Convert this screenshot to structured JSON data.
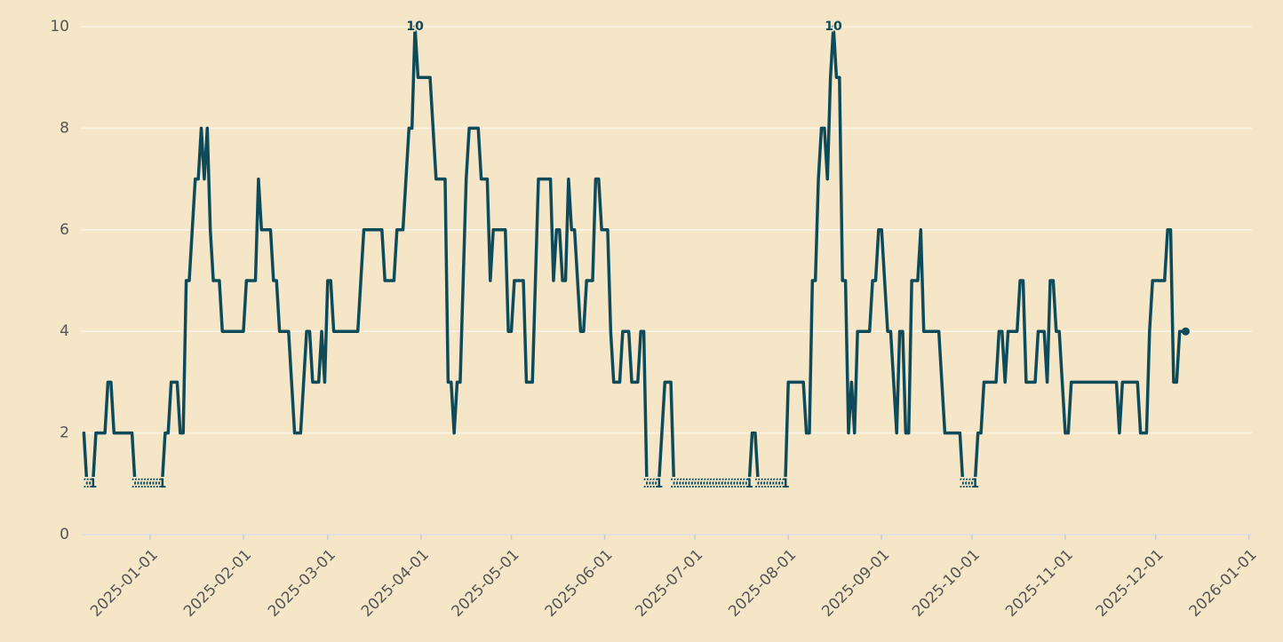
{
  "chart_data": {
    "type": "line",
    "x": [
      "2024-12-10",
      "2024-12-11",
      "2024-12-12",
      "2024-12-13",
      "2024-12-14",
      "2024-12-15",
      "2024-12-16",
      "2024-12-17",
      "2024-12-18",
      "2024-12-19",
      "2024-12-20",
      "2024-12-21",
      "2024-12-22",
      "2024-12-23",
      "2024-12-24",
      "2024-12-25",
      "2024-12-26",
      "2024-12-27",
      "2024-12-28",
      "2024-12-29",
      "2024-12-30",
      "2024-12-31",
      "2025-01-01",
      "2025-01-02",
      "2025-01-03",
      "2025-01-04",
      "2025-01-05",
      "2025-01-06",
      "2025-01-07",
      "2025-01-08",
      "2025-01-09",
      "2025-01-10",
      "2025-01-11",
      "2025-01-12",
      "2025-01-13",
      "2025-01-14",
      "2025-01-15",
      "2025-01-16",
      "2025-01-17",
      "2025-01-18",
      "2025-01-19",
      "2025-01-20",
      "2025-01-21",
      "2025-01-22",
      "2025-01-23",
      "2025-01-24",
      "2025-01-25",
      "2025-01-26",
      "2025-01-27",
      "2025-01-28",
      "2025-01-29",
      "2025-01-30",
      "2025-01-31",
      "2025-02-01",
      "2025-02-02",
      "2025-02-03",
      "2025-02-04",
      "2025-02-05",
      "2025-02-06",
      "2025-02-07",
      "2025-02-08",
      "2025-02-09",
      "2025-02-10",
      "2025-02-11",
      "2025-02-12",
      "2025-02-13",
      "2025-02-14",
      "2025-02-15",
      "2025-02-16",
      "2025-02-17",
      "2025-02-18",
      "2025-02-19",
      "2025-02-20",
      "2025-02-21",
      "2025-02-22",
      "2025-02-23",
      "2025-02-24",
      "2025-02-25",
      "2025-02-26",
      "2025-02-27",
      "2025-02-28",
      "2025-03-01",
      "2025-03-02",
      "2025-03-03",
      "2025-03-04",
      "2025-03-05",
      "2025-03-06",
      "2025-03-07",
      "2025-03-08",
      "2025-03-09",
      "2025-03-10",
      "2025-03-11",
      "2025-03-12",
      "2025-03-13",
      "2025-03-14",
      "2025-03-15",
      "2025-03-16",
      "2025-03-17",
      "2025-03-18",
      "2025-03-19",
      "2025-03-20",
      "2025-03-21",
      "2025-03-22",
      "2025-03-23",
      "2025-03-24",
      "2025-03-25",
      "2025-03-26",
      "2025-03-27",
      "2025-03-28",
      "2025-03-29",
      "2025-03-30",
      "2025-03-31",
      "2025-04-01",
      "2025-04-02",
      "2025-04-03",
      "2025-04-04",
      "2025-04-05",
      "2025-04-06",
      "2025-04-07",
      "2025-04-08",
      "2025-04-09",
      "2025-04-10",
      "2025-04-11",
      "2025-04-12",
      "2025-04-13",
      "2025-04-14",
      "2025-04-15",
      "2025-04-16",
      "2025-04-17",
      "2025-04-18",
      "2025-04-19",
      "2025-04-20",
      "2025-04-21",
      "2025-04-22",
      "2025-04-23",
      "2025-04-24",
      "2025-04-25",
      "2025-04-26",
      "2025-04-27",
      "2025-04-28",
      "2025-04-29",
      "2025-04-30",
      "2025-05-01",
      "2025-05-02",
      "2025-05-03",
      "2025-05-04",
      "2025-05-05",
      "2025-05-06",
      "2025-05-07",
      "2025-05-08",
      "2025-05-09",
      "2025-05-10",
      "2025-05-11",
      "2025-05-12",
      "2025-05-13",
      "2025-05-14",
      "2025-05-15",
      "2025-05-16",
      "2025-05-17",
      "2025-05-18",
      "2025-05-19",
      "2025-05-20",
      "2025-05-21",
      "2025-05-22",
      "2025-05-23",
      "2025-05-24",
      "2025-05-25",
      "2025-05-26",
      "2025-05-27",
      "2025-05-28",
      "2025-05-29",
      "2025-05-30",
      "2025-05-31",
      "2025-06-01",
      "2025-06-02",
      "2025-06-03",
      "2025-06-04",
      "2025-06-05",
      "2025-06-06",
      "2025-06-07",
      "2025-06-08",
      "2025-06-09",
      "2025-06-10",
      "2025-06-11",
      "2025-06-12",
      "2025-06-13",
      "2025-06-14",
      "2025-06-15",
      "2025-06-16",
      "2025-06-17",
      "2025-06-18",
      "2025-06-19",
      "2025-06-20",
      "2025-06-21",
      "2025-06-22",
      "2025-06-23",
      "2025-06-24",
      "2025-06-25",
      "2025-06-26",
      "2025-06-27",
      "2025-06-28",
      "2025-06-29",
      "2025-06-30",
      "2025-07-01",
      "2025-07-02",
      "2025-07-03",
      "2025-07-04",
      "2025-07-05",
      "2025-07-06",
      "2025-07-07",
      "2025-07-08",
      "2025-07-09",
      "2025-07-10",
      "2025-07-11",
      "2025-07-12",
      "2025-07-13",
      "2025-07-14",
      "2025-07-15",
      "2025-07-16",
      "2025-07-17",
      "2025-07-18",
      "2025-07-19",
      "2025-07-20",
      "2025-07-21",
      "2025-07-22",
      "2025-07-23",
      "2025-07-24",
      "2025-07-25",
      "2025-07-26",
      "2025-07-27",
      "2025-07-28",
      "2025-07-29",
      "2025-07-30",
      "2025-07-31",
      "2025-08-01",
      "2025-08-02",
      "2025-08-03",
      "2025-08-04",
      "2025-08-05",
      "2025-08-06",
      "2025-08-07",
      "2025-08-08",
      "2025-08-09",
      "2025-08-10",
      "2025-08-11",
      "2025-08-12",
      "2025-08-13",
      "2025-08-14",
      "2025-08-15",
      "2025-08-16",
      "2025-08-17",
      "2025-08-18",
      "2025-08-19",
      "2025-08-20",
      "2025-08-21",
      "2025-08-22",
      "2025-08-23",
      "2025-08-24",
      "2025-08-25",
      "2025-08-26",
      "2025-08-27",
      "2025-08-28",
      "2025-08-29",
      "2025-08-30",
      "2025-08-31",
      "2025-09-01",
      "2025-09-02",
      "2025-09-03",
      "2025-09-04",
      "2025-09-05",
      "2025-09-06",
      "2025-09-07",
      "2025-09-08",
      "2025-09-09",
      "2025-09-10",
      "2025-09-11",
      "2025-09-12",
      "2025-09-13",
      "2025-09-14",
      "2025-09-15",
      "2025-09-16",
      "2025-09-17",
      "2025-09-18",
      "2025-09-19",
      "2025-09-20",
      "2025-09-21",
      "2025-09-22",
      "2025-09-23",
      "2025-09-24",
      "2025-09-25",
      "2025-09-26",
      "2025-09-27",
      "2025-09-28",
      "2025-09-29",
      "2025-09-30",
      "2025-10-01",
      "2025-10-02",
      "2025-10-03",
      "2025-10-04",
      "2025-10-05",
      "2025-10-06",
      "2025-10-07",
      "2025-10-08",
      "2025-10-09",
      "2025-10-10",
      "2025-10-11",
      "2025-10-12",
      "2025-10-13",
      "2025-10-14",
      "2025-10-15",
      "2025-10-16",
      "2025-10-17",
      "2025-10-18",
      "2025-10-19",
      "2025-10-20",
      "2025-10-21",
      "2025-10-22",
      "2025-10-23",
      "2025-10-24",
      "2025-10-25",
      "2025-10-26",
      "2025-10-27",
      "2025-10-28",
      "2025-10-29",
      "2025-10-30",
      "2025-10-31",
      "2025-11-01",
      "2025-11-02",
      "2025-11-03",
      "2025-11-04",
      "2025-11-05",
      "2025-11-06",
      "2025-11-07",
      "2025-11-08",
      "2025-11-09",
      "2025-11-10",
      "2025-11-11",
      "2025-11-12",
      "2025-11-13",
      "2025-11-14",
      "2025-11-15",
      "2025-11-16",
      "2025-11-17",
      "2025-11-18",
      "2025-11-19",
      "2025-11-20",
      "2025-11-21",
      "2025-11-22",
      "2025-11-23",
      "2025-11-24",
      "2025-11-25",
      "2025-11-26",
      "2025-11-27",
      "2025-11-28",
      "2025-11-29",
      "2025-11-30",
      "2025-12-01",
      "2025-12-02",
      "2025-12-03",
      "2025-12-04",
      "2025-12-05",
      "2025-12-06",
      "2025-12-07",
      "2025-12-08",
      "2025-12-09",
      "2025-12-10",
      "2025-12-11"
    ],
    "values": [
      2,
      1,
      1,
      1,
      2,
      2,
      2,
      2,
      3,
      3,
      2,
      2,
      2,
      2,
      2,
      2,
      2,
      1,
      1,
      1,
      1,
      1,
      1,
      1,
      1,
      1,
      1,
      2,
      2,
      3,
      3,
      3,
      2,
      2,
      5,
      5,
      6,
      7,
      7,
      8,
      7,
      8,
      6,
      5,
      5,
      5,
      4,
      4,
      4,
      4,
      4,
      4,
      4,
      4,
      5,
      5,
      5,
      5,
      7,
      6,
      6,
      6,
      6,
      5,
      5,
      4,
      4,
      4,
      4,
      3,
      2,
      2,
      2,
      3,
      4,
      4,
      3,
      3,
      3,
      4,
      3,
      5,
      5,
      4,
      4,
      4,
      4,
      4,
      4,
      4,
      4,
      4,
      5,
      6,
      6,
      6,
      6,
      6,
      6,
      6,
      5,
      5,
      5,
      5,
      6,
      6,
      6,
      7,
      8,
      8,
      10,
      9,
      9,
      9,
      9,
      9,
      8,
      7,
      7,
      7,
      7,
      3,
      3,
      2,
      3,
      3,
      5,
      7,
      8,
      8,
      8,
      8,
      7,
      7,
      7,
      5,
      6,
      6,
      6,
      6,
      6,
      4,
      4,
      5,
      5,
      5,
      5,
      3,
      3,
      3,
      5,
      7,
      7,
      7,
      7,
      7,
      5,
      6,
      6,
      5,
      5,
      7,
      6,
      6,
      5,
      4,
      4,
      5,
      5,
      5,
      7,
      7,
      6,
      6,
      6,
      4,
      3,
      3,
      3,
      4,
      4,
      4,
      3,
      3,
      3,
      4,
      4,
      1,
      1,
      1,
      1,
      1,
      2,
      3,
      3,
      3,
      1,
      1,
      1,
      1,
      1,
      1,
      1,
      1,
      1,
      1,
      1,
      1,
      1,
      1,
      1,
      1,
      1,
      1,
      1,
      1,
      1,
      1,
      1,
      1,
      1,
      1,
      2,
      2,
      1,
      1,
      1,
      1,
      1,
      1,
      1,
      1,
      1,
      1,
      3,
      3,
      3,
      3,
      3,
      3,
      2,
      2,
      5,
      5,
      7,
      8,
      8,
      7,
      9,
      10,
      9,
      9,
      5,
      5,
      2,
      3,
      2,
      4,
      4,
      4,
      4,
      4,
      5,
      5,
      6,
      6,
      5,
      4,
      4,
      3,
      2,
      4,
      4,
      2,
      2,
      5,
      5,
      5,
      6,
      4,
      4,
      4,
      4,
      4,
      4,
      3,
      2,
      2,
      2,
      2,
      2,
      2,
      1,
      1,
      1,
      1,
      1,
      2,
      2,
      3,
      3,
      3,
      3,
      3,
      4,
      4,
      3,
      4,
      4,
      4,
      4,
      5,
      5,
      3,
      3,
      3,
      3,
      4,
      4,
      4,
      3,
      5,
      5,
      4,
      4,
      3,
      2,
      2,
      3,
      3,
      3,
      3,
      3,
      3,
      3,
      3,
      3,
      3,
      3,
      3,
      3,
      3,
      3,
      3,
      2,
      3,
      3,
      3,
      3,
      3,
      3,
      2,
      2,
      2,
      4,
      5,
      5,
      5,
      5,
      5,
      6,
      6,
      3,
      3,
      4,
      4,
      4
    ],
    "color": "#0d4a5a",
    "xlim": [
      "2024-12-09",
      "2026-01-02"
    ],
    "xticks": [
      "2025-01-01",
      "2025-02-01",
      "2025-03-01",
      "2025-04-01",
      "2025-05-01",
      "2025-06-01",
      "2025-07-01",
      "2025-08-01",
      "2025-09-01",
      "2025-10-01",
      "2025-11-01",
      "2025-12-01",
      "2026-01-01"
    ],
    "ylim": [
      0,
      10
    ],
    "yticks": [
      0,
      2,
      4,
      6,
      8,
      10
    ],
    "grid": true
  }
}
